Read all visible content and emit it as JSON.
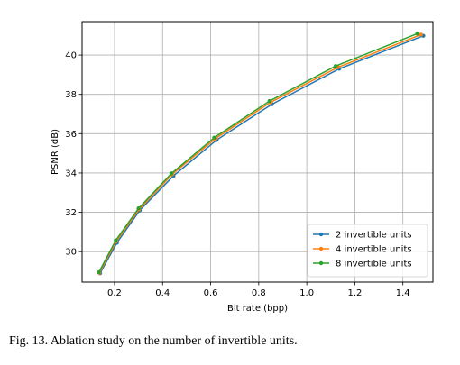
{
  "chart_data": {
    "type": "line",
    "xlabel": "Bit rate (bpp)",
    "ylabel": "PSNR (dB)",
    "xlim": [
      0.065,
      1.525
    ],
    "ylim": [
      28.45,
      41.7
    ],
    "xticks": [
      0.2,
      0.4,
      0.6,
      0.8,
      1.0,
      1.2,
      1.4
    ],
    "xtick_labels": [
      "0.2",
      "0.4",
      "0.6",
      "0.8",
      "1.0",
      "1.2",
      "1.4"
    ],
    "yticks": [
      30,
      32,
      34,
      36,
      38,
      40
    ],
    "ytick_labels": [
      "30",
      "32",
      "34",
      "36",
      "38",
      "40"
    ],
    "grid": true,
    "legend_position": "lower-right",
    "series": [
      {
        "name": "2 invertible units",
        "color": "#1f77b4",
        "x": [
          0.14,
          0.21,
          0.305,
          0.445,
          0.625,
          0.855,
          1.135,
          1.485
        ],
        "y": [
          28.9,
          30.45,
          32.1,
          33.85,
          35.68,
          37.5,
          39.3,
          40.98
        ]
      },
      {
        "name": "4 invertible units",
        "color": "#ff7f0e",
        "x": [
          0.137,
          0.207,
          0.302,
          0.44,
          0.62,
          0.85,
          1.13,
          1.475
        ],
        "y": [
          28.92,
          30.52,
          32.15,
          33.93,
          35.75,
          37.6,
          39.38,
          41.04
        ]
      },
      {
        "name": "8 invertible units",
        "color": "#2ca02c",
        "x": [
          0.135,
          0.205,
          0.3,
          0.437,
          0.615,
          0.845,
          1.12,
          1.46
        ],
        "y": [
          28.95,
          30.57,
          32.2,
          33.98,
          35.8,
          37.66,
          39.44,
          41.09
        ]
      }
    ]
  },
  "caption": "Fig. 13.  Ablation study on the number of invertible units."
}
